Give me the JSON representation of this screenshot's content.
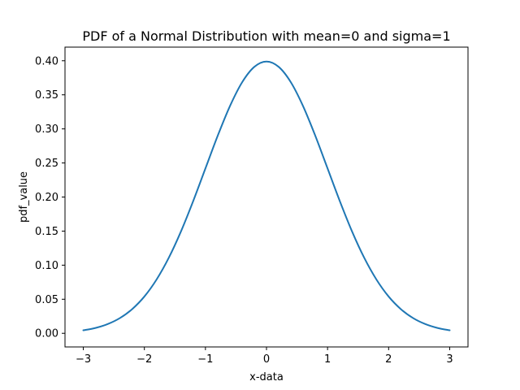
{
  "chart_data": {
    "type": "line",
    "title": "PDF of a Normal Distribution with mean=0 and sigma=1",
    "xlabel": "x-data",
    "ylabel": "pdf_value",
    "xlim": [
      -3.3,
      3.3
    ],
    "ylim": [
      -0.02,
      0.42
    ],
    "x_ticks": [
      -3,
      -2,
      -1,
      0,
      1,
      2,
      3
    ],
    "x_tick_labels": [
      "−3",
      "−2",
      "−1",
      "0",
      "1",
      "2",
      "3"
    ],
    "y_ticks": [
      0.0,
      0.05,
      0.1,
      0.15,
      0.2,
      0.25,
      0.3,
      0.35,
      0.4
    ],
    "y_tick_labels": [
      "0.00",
      "0.05",
      "0.10",
      "0.15",
      "0.20",
      "0.25",
      "0.30",
      "0.35",
      "0.40"
    ],
    "grid": false,
    "series": [
      {
        "color": "#1f77b4",
        "x": [
          -3.0,
          -2.8,
          -2.6,
          -2.4,
          -2.2,
          -2.0,
          -1.8,
          -1.6,
          -1.4,
          -1.2,
          -1.0,
          -0.8,
          -0.6,
          -0.4,
          -0.2,
          0.0,
          0.2,
          0.4,
          0.6,
          0.8,
          1.0,
          1.2,
          1.4,
          1.6,
          1.8,
          2.0,
          2.2,
          2.4,
          2.6,
          2.8,
          3.0
        ],
        "y": [
          0.0044,
          0.0079,
          0.0136,
          0.0224,
          0.0355,
          0.054,
          0.079,
          0.1109,
          0.1497,
          0.1942,
          0.242,
          0.2897,
          0.3332,
          0.3683,
          0.391,
          0.3989,
          0.391,
          0.3683,
          0.3332,
          0.2897,
          0.242,
          0.1942,
          0.1497,
          0.1109,
          0.079,
          0.054,
          0.0355,
          0.0224,
          0.0136,
          0.0079,
          0.0044
        ]
      }
    ]
  }
}
